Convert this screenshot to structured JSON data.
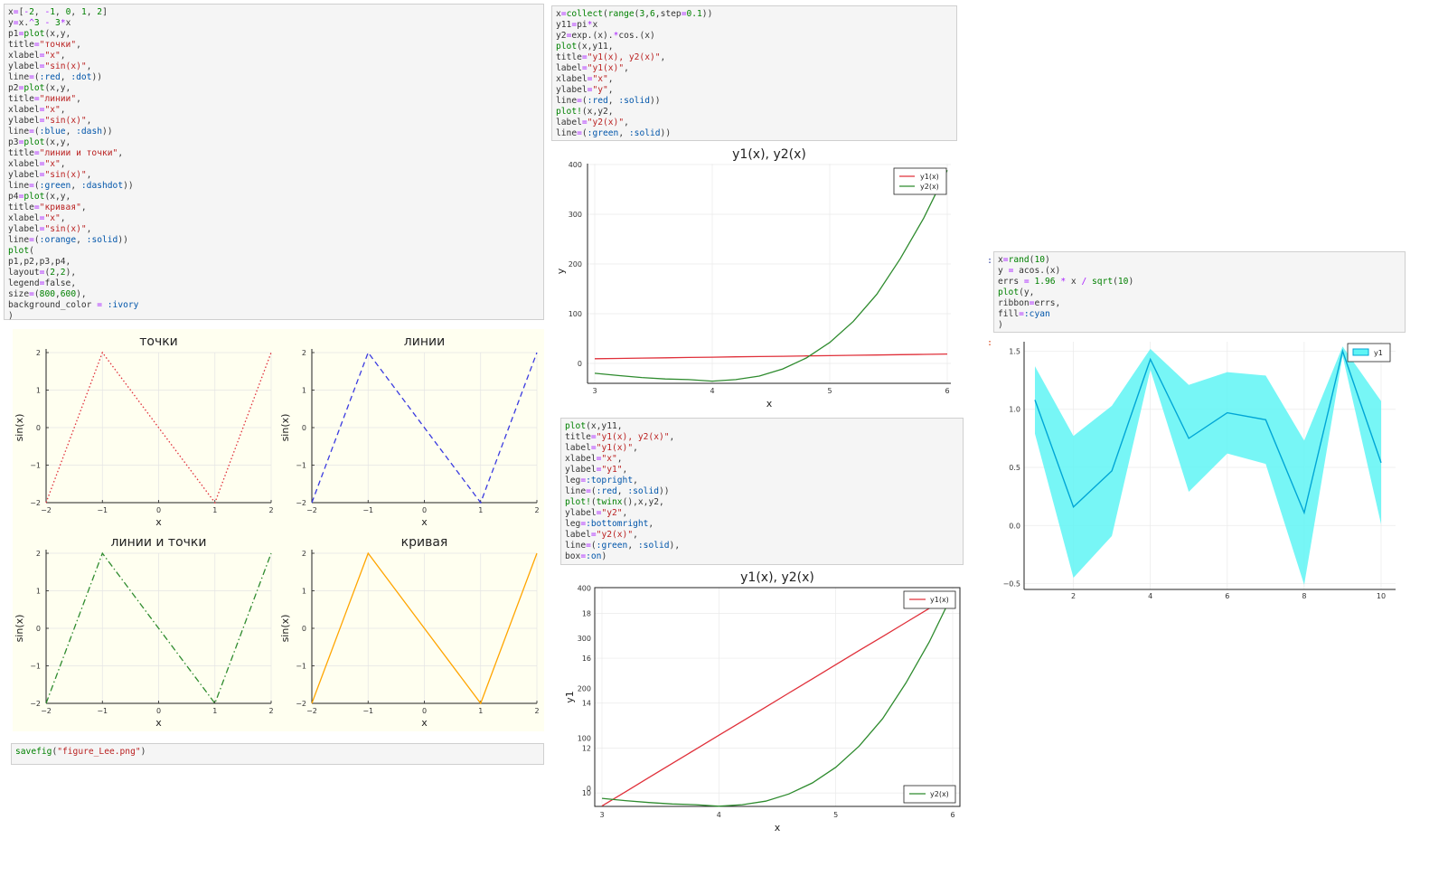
{
  "cells": {
    "cell1": {
      "code": [
        "x=[-2, -1, 0, 1, 2]",
        "y=x.^3 - 3*x",
        "p1=plot(x,y,",
        "title=\"точки\",",
        "xlabel=\"x\",",
        "ylabel=\"sin(x)\",",
        "line=(:red, :dot))",
        "p2=plot(x,y,",
        "title=\"линии\",",
        "xlabel=\"x\",",
        "ylabel=\"sin(x)\",",
        "line=(:blue, :dash))",
        "p3=plot(x,y,",
        "title=\"линии и точки\",",
        "xlabel=\"x\",",
        "ylabel=\"sin(x)\",",
        "line=(:green, :dashdot))",
        "p4=plot(x,y,",
        "title=\"кривая\",",
        "xlabel=\"x\",",
        "ylabel=\"sin(x)\",",
        "line=(:orange, :solid))",
        "plot(",
        "p1,p2,p3,p4,",
        "layout=(2,2),",
        "legend=false,",
        "size=(800,600),",
        "background_color = :ivory",
        ")"
      ]
    },
    "cell_savefig": {
      "code": [
        "savefig(\"figure_Lee.png\")"
      ]
    },
    "cell2": {
      "code": [
        "x=collect(range(3,6,step=0.1))",
        "y11=pi*x",
        "y2=exp.(x).*cos.(x)",
        "plot(x,y11,",
        "title=\"y1(x), y2(x)\",",
        "label=\"y1(x)\",",
        "xlabel=\"x\",",
        "ylabel=\"y\",",
        "line=(:red, :solid))",
        "plot!(x,y2,",
        "label=\"y2(x)\",",
        "line=(:green, :solid))"
      ]
    },
    "cell3": {
      "code": [
        "plot(x,y11,",
        "title=\"y1(x), y2(x)\",",
        "label=\"y1(x)\",",
        "xlabel=\"x\",",
        "ylabel=\"y1\",",
        "leg=:topright,",
        "line=(:red, :solid))",
        "plot!(twinx(),x,y2,",
        "ylabel=\"y2\",",
        "leg=:bottomright,",
        "label=\"y2(x)\",",
        "line=(:green, :solid),",
        "box=:on)"
      ]
    },
    "cell4": {
      "prompt": ":",
      "out_prompt": ":",
      "code": [
        "x=rand(10)",
        "y = acos.(x)",
        "errs = 1.96 * x / sqrt(10)",
        "plot(y,",
        "ribbon=errs,",
        "fill=:cyan",
        ")"
      ]
    }
  },
  "chart_data": [
    {
      "type": "line",
      "title": "точки",
      "xlabel": "x",
      "ylabel": "sin(x)",
      "x": [
        -2,
        -1,
        0,
        1,
        2
      ],
      "series": [
        {
          "values": [
            -2,
            2,
            0,
            -2,
            2
          ],
          "color": "#e0303a",
          "style": "dot"
        }
      ],
      "xlim": [
        -2,
        2
      ],
      "ylim": [
        -2,
        2
      ],
      "xticks": [
        "−2",
        "−1",
        "0",
        "1",
        "2"
      ],
      "yticks": [
        "−2",
        "−1",
        "0",
        "1",
        "2"
      ],
      "background": "#fffff0",
      "legend": false,
      "grid": true
    },
    {
      "type": "line",
      "title": "линии",
      "xlabel": "x",
      "ylabel": "sin(x)",
      "x": [
        -2,
        -1,
        0,
        1,
        2
      ],
      "series": [
        {
          "values": [
            -2,
            2,
            0,
            -2,
            2
          ],
          "color": "#3a3ae0",
          "style": "dash"
        }
      ],
      "xlim": [
        -2,
        2
      ],
      "ylim": [
        -2,
        2
      ],
      "xticks": [
        "−2",
        "−1",
        "0",
        "1",
        "2"
      ],
      "yticks": [
        "−2",
        "−1",
        "0",
        "1",
        "2"
      ],
      "background": "#fffff0",
      "legend": false,
      "grid": true
    },
    {
      "type": "line",
      "title": "линии и точки",
      "xlabel": "x",
      "ylabel": "sin(x)",
      "x": [
        -2,
        -1,
        0,
        1,
        2
      ],
      "series": [
        {
          "values": [
            -2,
            2,
            0,
            -2,
            2
          ],
          "color": "#2e8b2e",
          "style": "dashdot"
        }
      ],
      "xlim": [
        -2,
        2
      ],
      "ylim": [
        -2,
        2
      ],
      "xticks": [
        "−2",
        "−1",
        "0",
        "1",
        "2"
      ],
      "yticks": [
        "−2",
        "−1",
        "0",
        "1",
        "2"
      ],
      "background": "#fffff0",
      "legend": false,
      "grid": true
    },
    {
      "type": "line",
      "title": "кривая",
      "xlabel": "x",
      "ylabel": "sin(x)",
      "x": [
        -2,
        -1,
        0,
        1,
        2
      ],
      "series": [
        {
          "values": [
            -2,
            2,
            0,
            -2,
            2
          ],
          "color": "#ffa500",
          "style": "solid"
        }
      ],
      "xlim": [
        -2,
        2
      ],
      "ylim": [
        -2,
        2
      ],
      "xticks": [
        "−2",
        "−1",
        "0",
        "1",
        "2"
      ],
      "yticks": [
        "−2",
        "−1",
        "0",
        "1",
        "2"
      ],
      "background": "#fffff0",
      "legend": false,
      "grid": true
    },
    {
      "type": "line",
      "title": "y1(x), y2(x)",
      "xlabel": "x",
      "ylabel": "y",
      "x": [
        3,
        3.2,
        3.4,
        3.6,
        3.8,
        4.0,
        4.2,
        4.4,
        4.6,
        4.8,
        5.0,
        5.2,
        5.4,
        5.6,
        5.8,
        6.0
      ],
      "series": [
        {
          "name": "y1(x)",
          "color": "#e0303a",
          "values": [
            9.42,
            10.05,
            10.68,
            11.31,
            11.94,
            12.57,
            13.19,
            13.82,
            14.45,
            15.08,
            15.71,
            16.34,
            16.96,
            17.59,
            18.22,
            18.85
          ]
        },
        {
          "name": "y2(x)",
          "color": "#2e8b2e",
          "values": [
            -19.9,
            -24.4,
            -28.3,
            -31.2,
            -32.6,
            -35.7,
            -32.6,
            -25.5,
            -11.0,
            10.9,
            42.1,
            84.4,
            139.0,
            210.5,
            292.4,
            388.6
          ]
        }
      ],
      "xlim": [
        3,
        6
      ],
      "ylim": [
        -40,
        400
      ],
      "xticks": [
        "3",
        "4",
        "5",
        "6"
      ],
      "yticks": [
        "0",
        "100",
        "200",
        "300",
        "400"
      ],
      "legend": "top-right",
      "grid": true
    },
    {
      "type": "line",
      "title": "y1(x), y2(x)",
      "xlabel": "x",
      "ylabel": "y1",
      "x": [
        3,
        3.2,
        3.4,
        3.6,
        3.8,
        4.0,
        4.2,
        4.4,
        4.6,
        4.8,
        5.0,
        5.2,
        5.4,
        5.6,
        5.8,
        6.0
      ],
      "series": [
        {
          "name": "y1(x)",
          "color": "#e0303a",
          "axis": "left",
          "values": [
            9.42,
            10.05,
            10.68,
            11.31,
            11.94,
            12.57,
            13.19,
            13.82,
            14.45,
            15.08,
            15.71,
            16.34,
            16.96,
            17.59,
            18.22,
            18.85
          ]
        },
        {
          "name": "y2(x)",
          "color": "#2e8b2e",
          "axis": "right",
          "values": [
            -19.9,
            -24.4,
            -28.3,
            -31.2,
            -32.6,
            -35.7,
            -32.6,
            -25.5,
            -11.0,
            10.9,
            42.1,
            84.4,
            139.0,
            210.5,
            292.4,
            388.6
          ]
        }
      ],
      "xlim": [
        3,
        6
      ],
      "ylim_left": [
        9.4,
        18.9
      ],
      "ylim_right": [
        -36,
        390
      ],
      "xticks": [
        "3",
        "4",
        "5",
        "6"
      ],
      "yticks_left": [
        "10",
        "12",
        "14",
        "16",
        "18"
      ],
      "yticks_right": [
        "0",
        "100",
        "200",
        "300",
        "400"
      ],
      "legend": [
        "top-right",
        "bottom-right"
      ],
      "grid": true
    },
    {
      "type": "area",
      "x": [
        1,
        2,
        3,
        4,
        5,
        6,
        7,
        8,
        9,
        10
      ],
      "series": [
        {
          "name": "y1",
          "color": "#00a6d6",
          "fill": "#5ff5f5",
          "values": [
            1.08,
            0.16,
            0.47,
            1.43,
            0.75,
            0.97,
            0.91,
            0.11,
            1.5,
            0.54
          ],
          "ribbon": [
            0.29,
            0.61,
            0.56,
            0.09,
            0.46,
            0.35,
            0.38,
            0.62,
            0.04,
            0.53
          ]
        }
      ],
      "xlim": [
        1,
        10
      ],
      "ylim": [
        -0.55,
        1.55
      ],
      "xticks": [
        "2",
        "4",
        "6",
        "8",
        "10"
      ],
      "yticks": [
        "−0.5",
        "0.0",
        "0.5",
        "1.0",
        "1.5"
      ],
      "legend": "top-right",
      "grid": true
    }
  ]
}
